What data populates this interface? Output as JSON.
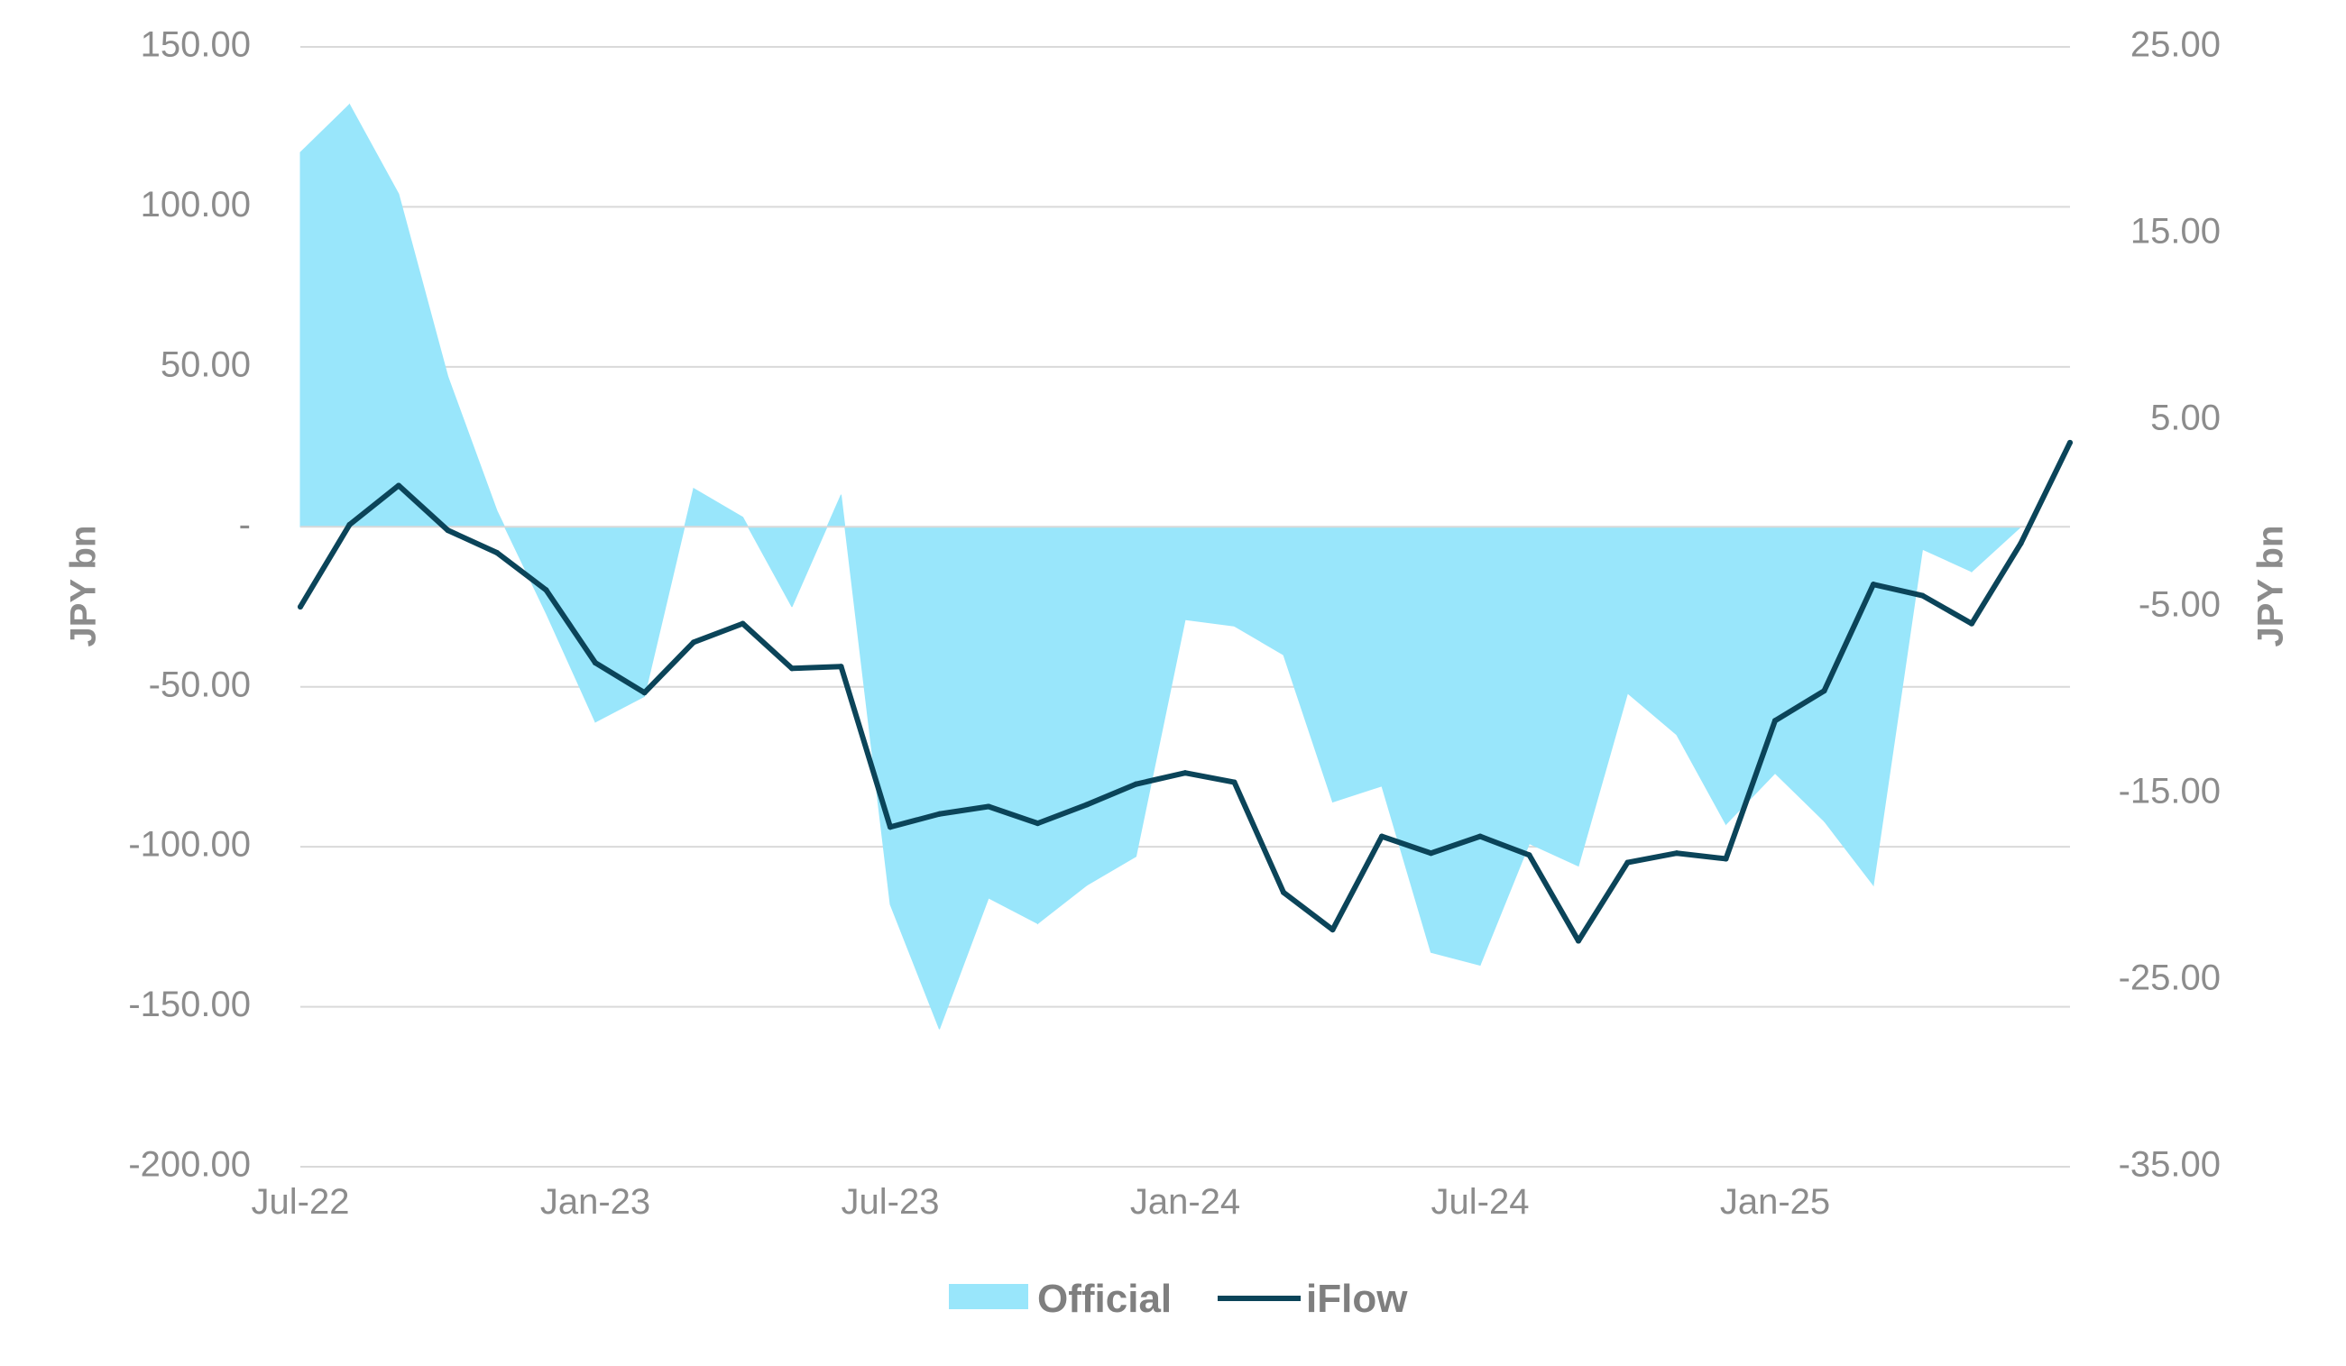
{
  "chart_data": {
    "type": "area",
    "y_left": {
      "label": "JPY bn",
      "range": [
        -200,
        150
      ],
      "ticks": [
        {
          "value": 150,
          "label": "150.00"
        },
        {
          "value": 100,
          "label": "100.00"
        },
        {
          "value": 50,
          "label": "50.00"
        },
        {
          "value": 0,
          "label": "-"
        },
        {
          "value": -50,
          "label": "-50.00"
        },
        {
          "value": -100,
          "label": "-100.00"
        },
        {
          "value": -150,
          "label": "-150.00"
        },
        {
          "value": -200,
          "label": "-200.00"
        }
      ]
    },
    "y_right": {
      "label": "JPY bn",
      "range": [
        -35,
        25
      ],
      "ticks": [
        {
          "value": 25,
          "label": "25.00"
        },
        {
          "value": 15,
          "label": "15.00"
        },
        {
          "value": 5,
          "label": "5.00"
        },
        {
          "value": -5,
          "label": "-5.00"
        },
        {
          "value": -15,
          "label": "-15.00"
        },
        {
          "value": -25,
          "label": "-25.00"
        },
        {
          "value": -35,
          "label": "-35.00"
        }
      ]
    },
    "x_ticks": [
      {
        "label": "Jul-22",
        "index": 0
      },
      {
        "label": "Jan-23",
        "index": 6
      },
      {
        "label": "Jul-23",
        "index": 12
      },
      {
        "label": "Jan-24",
        "index": 18
      },
      {
        "label": "Jul-24",
        "index": 24
      },
      {
        "label": "Jan-25",
        "index": 30
      }
    ],
    "x": [
      "Jul-22",
      "Aug-22",
      "Sep-22",
      "Oct-22",
      "Nov-22",
      "Dec-22",
      "Jan-23",
      "Feb-23",
      "Mar-23",
      "Apr-23",
      "May-23",
      "Jun-23",
      "Jul-23",
      "Aug-23",
      "Sep-23",
      "Oct-23",
      "Nov-23",
      "Dec-23",
      "Jan-24",
      "Feb-24",
      "Mar-24",
      "Apr-24",
      "May-24",
      "Jun-24",
      "Jul-24",
      "Aug-24",
      "Sep-24",
      "Oct-24",
      "Nov-24",
      "Dec-24",
      "Jan-25",
      "Feb-25",
      "Mar-25",
      "Apr-25",
      "May-25",
      "Jun-25",
      "Jul-25",
      "Aug-25"
    ],
    "series": [
      {
        "name": "Official",
        "type": "area",
        "axis": "left",
        "color": "#99e6fb",
        "values": [
          117,
          132,
          104,
          47,
          5,
          -27,
          -61,
          -53,
          12,
          3,
          -25,
          10,
          -118,
          -157,
          -116,
          -124,
          -112,
          -103,
          -29,
          -31,
          -40,
          -86,
          -81,
          -133,
          -137,
          -99,
          -106,
          -52,
          -65,
          -93,
          -77,
          -92,
          -112,
          -7,
          -14,
          0,
          null,
          null
        ]
      },
      {
        "name": "iFlow",
        "type": "line",
        "axis": "right",
        "color": "#0b4459",
        "values": [
          -5.0,
          -0.6,
          1.5,
          -0.9,
          -2.1,
          -4.1,
          -8.0,
          -9.6,
          -6.9,
          -5.9,
          -8.3,
          -8.2,
          -16.8,
          -16.1,
          -15.7,
          -16.6,
          -15.6,
          -14.5,
          -13.9,
          -14.4,
          -20.3,
          -22.3,
          -17.3,
          -18.2,
          -17.3,
          -18.3,
          -22.9,
          -18.7,
          -18.2,
          -18.5,
          -11.1,
          -9.5,
          -3.8,
          -4.4,
          -5.9,
          -1.6,
          3.8,
          null
        ]
      }
    ],
    "legend": {
      "position": "bottom",
      "items": [
        "Official",
        "iFlow"
      ]
    },
    "grid": true
  }
}
